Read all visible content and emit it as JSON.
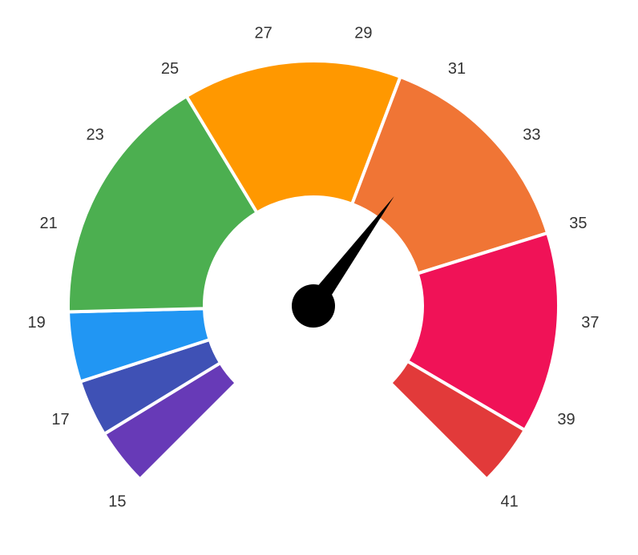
{
  "chart_data": {
    "type": "gauge",
    "title": "",
    "scale": {
      "min": 15,
      "max": 41
    },
    "ticks": [
      "15",
      "17",
      "19",
      "21",
      "23",
      "25",
      "27",
      "29",
      "31",
      "33",
      "35",
      "37",
      "39",
      "41"
    ],
    "bands": [
      {
        "from": 15,
        "to": 16.3,
        "color": "#673AB7"
      },
      {
        "from": 16.3,
        "to": 17.6,
        "color": "#3F51B5"
      },
      {
        "from": 17.6,
        "to": 19.2,
        "color": "#2196F3"
      },
      {
        "from": 19.2,
        "to": 25,
        "color": "#4CAF50"
      },
      {
        "from": 25,
        "to": 30,
        "color": "#FF9800"
      },
      {
        "from": 30,
        "to": 35,
        "color": "#F07535"
      },
      {
        "from": 35,
        "to": 39.6,
        "color": "#F01257"
      },
      {
        "from": 39.6,
        "to": 41,
        "color": "#E23A3A"
      }
    ],
    "needle": {
      "value": 31.5,
      "color": "#000000"
    }
  }
}
